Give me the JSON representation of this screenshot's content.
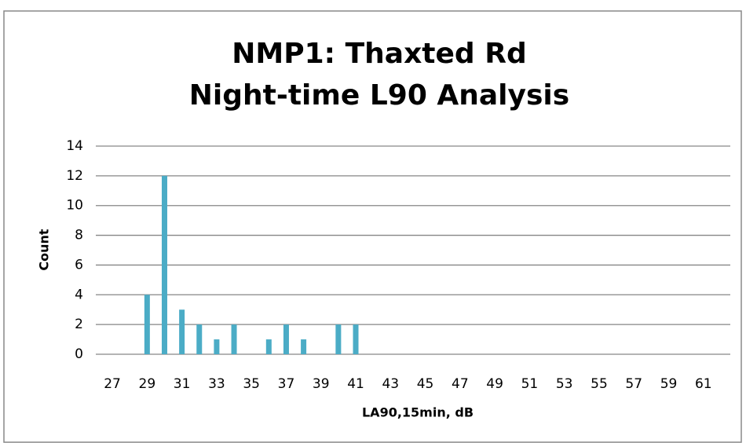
{
  "chart_data": {
    "type": "bar",
    "title": "NMP1: Thaxted Rd",
    "subtitle": "Night-time L90 Analysis",
    "x_label": "LA90,15min, dB",
    "y_label": "Count",
    "categories": [
      "27",
      null,
      "29",
      null,
      "31",
      null,
      "33",
      null,
      "35",
      null,
      "37",
      null,
      "39",
      null,
      "41",
      null,
      "43",
      null,
      "45",
      null,
      "47",
      null,
      "49",
      null,
      "51",
      null,
      "53",
      null,
      "55",
      null,
      "57",
      null,
      "59",
      null,
      "61",
      null
    ],
    "values": [
      0,
      0,
      4,
      12,
      3,
      2,
      1,
      2,
      0,
      1,
      2,
      1,
      0,
      2,
      2,
      0,
      0,
      0,
      0,
      0,
      0,
      0,
      0,
      0,
      0,
      0,
      0,
      0,
      0,
      0,
      0,
      0,
      0,
      0,
      0,
      0
    ],
    "color": "#4bacc6",
    "ylim": [
      0,
      14
    ],
    "yticks": [
      0,
      2,
      4,
      6,
      8,
      10,
      12,
      14
    ],
    "grid": true
  }
}
